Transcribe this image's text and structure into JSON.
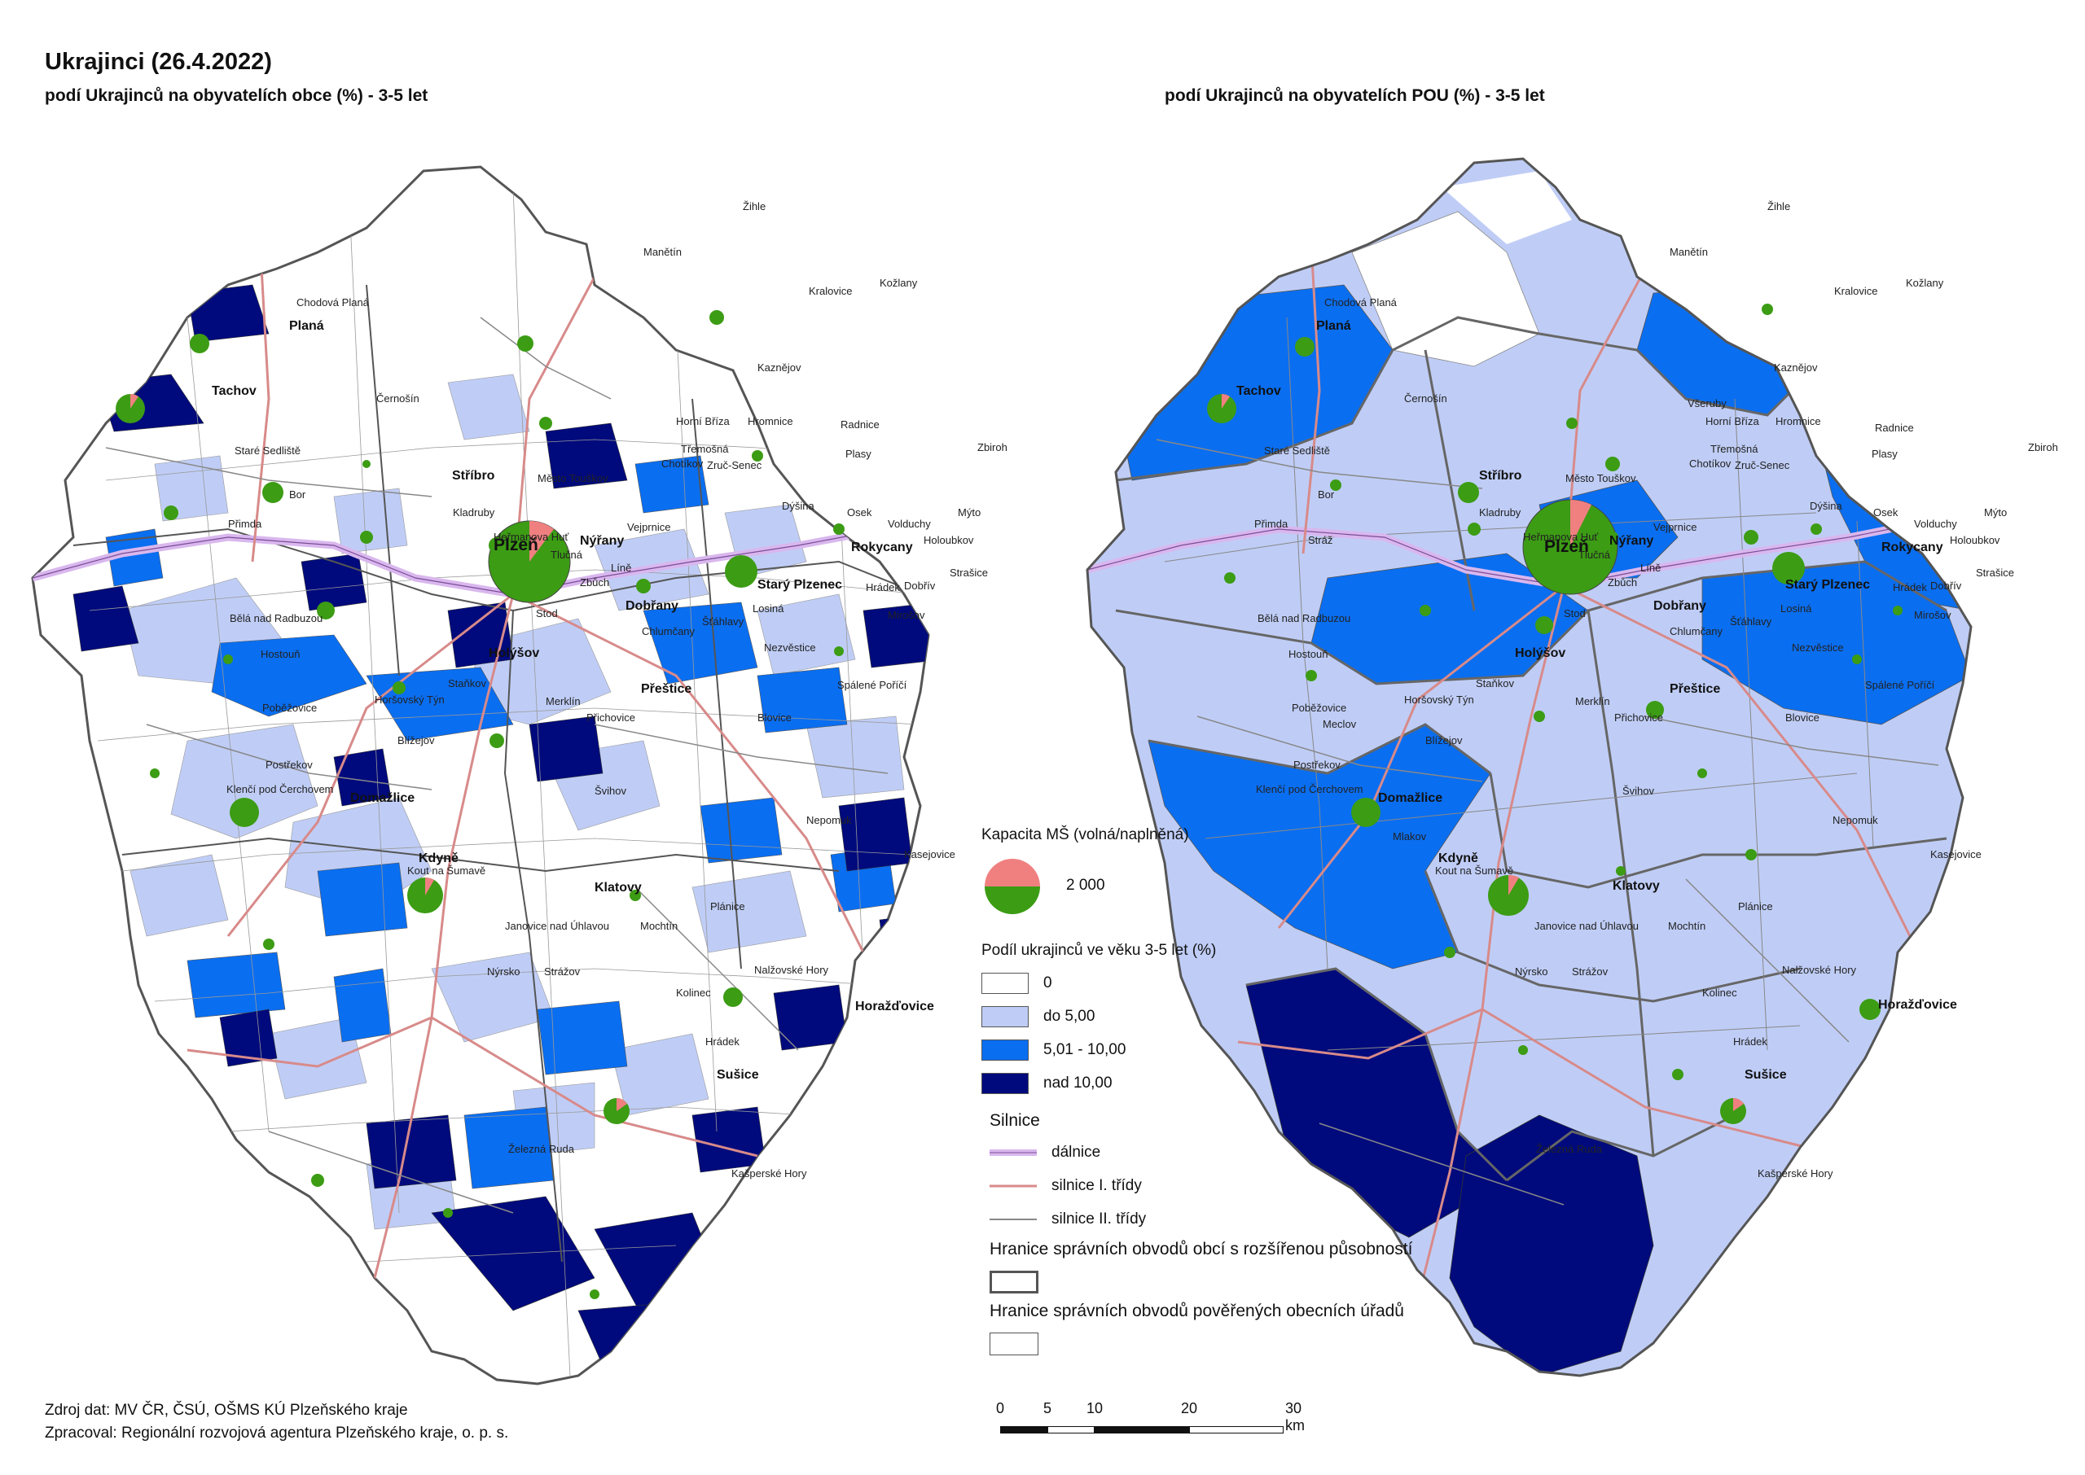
{
  "title": "Ukrajinci (26.4.2022)",
  "subtitle_left": "podí Ukrajinců na obyvatelích obce (%) -  3-5 let",
  "subtitle_right": "podí Ukrajinců na obyvatelích POU (%) -  3-5 let",
  "colors": {
    "class_0": "#ffffff",
    "class_do5": "#bfcdf6",
    "class_5_10": "#0a6ef0",
    "class_nad10": "#000a7c",
    "pie_free": "#f08080",
    "pie_filled": "#3c9c14",
    "dalnice": "#d9b7ee",
    "silnice_1": "#d88a8a",
    "silnice_2": "#888888",
    "border_orp": "#555555"
  },
  "legend": {
    "capacity_title": "Kapacita MŠ (volná/naplněná)",
    "capacity_value": "2 000",
    "share_title": "Podíl ukrajinců ve věku 3-5 let  (%)",
    "classes": [
      "0",
      "do 5,00",
      "5,01 - 10,00",
      "nad 10,00"
    ],
    "roads_title": "Silnice",
    "roads": [
      "dálnice",
      "silnice I. třídy",
      "silnice II. třídy"
    ],
    "boundary_orp": "Hranice správních obvodů obcí s rozšířenou působností",
    "boundary_pou": "Hranice správních obvodů pověřených obecních úřadů"
  },
  "towns": {
    "plzen": "Plzeň",
    "klatovy": "Klatovy",
    "domazlice": "Domažlice",
    "rokycany": "Rokycany",
    "tachov": "Tachov",
    "stribro": "Stříbro",
    "planá": "Planá",
    "holysov": "Holýšov",
    "prestice": "Přeštice",
    "dobrany": "Dobřany",
    "nyrany": "Nýřany",
    "stary_plzenec": "Starý Plzenec",
    "kdyne": "Kdyně",
    "horazdovice": "Horažďovice",
    "susice": "Sušice",
    "zihle": "Žihle",
    "manetin": "Manětín",
    "kralovice": "Kralovice",
    "kozlany": "Kožlany",
    "chodova_plana": "Chodová Planá",
    "cernosin": "Černošín",
    "mesto_touskov": "Město Touškov",
    "kralovice2": "Kaznějov",
    "trem": "Třemošná",
    "zruc": "Zruč-Senec",
    "zbiroh": "Zbiroh",
    "radnice": "Radnice",
    "bor": "Bor",
    "stare_sedliste": "Staré Sedliště",
    "primda": "Přimda",
    "kladruby": "Kladruby",
    "hermanova_hut": "Heřmanova Huť",
    "bela": "Bělá nad Radbuzou",
    "hostoun": "Hostouň",
    "horsovsky_tyn": "Horšovský Týn",
    "pobezovice": "Poběžovice",
    "blizejov": "Blížejov",
    "postrekov": "Postřekov",
    "klenci": "Klenčí pod Čerchovem",
    "kout": "Kout na Šumavě",
    "janovice": "Janovice nad Úhlavou",
    "mochtin": "Mochtín",
    "nyrsko": "Nýrsko",
    "strazov": "Strážov",
    "kolinec": "Kolinec",
    "hradek": "Hrádek",
    "nalzovske_hory": "Nalžovské Hory",
    "zelezna_ruda": "Železná Ruda",
    "kasperske_hory": "Kašperské Hory",
    "nepomuk": "Nepomuk",
    "kasejovice": "Kasejovice",
    "planice": "Plánice",
    "svihov": "Švihov",
    "merklin": "Merklín",
    "prichovice": "Přichovice",
    "blovice": "Blovice",
    "spalene_porici": "Spálené Poříčí",
    "nezvestice": "Nezvěstice",
    "mirosov": "Mirošov",
    "losina": "Losiná",
    "stenovice": "Šťáhlavy",
    "chlumcany": "Chlumčany",
    "stod": "Stod",
    "stankov": "Staňkov",
    "mesto_vejprnice": "Vejprnice",
    "tlucna": "Tlučná",
    "line": "Líně",
    "zbuch": "Zbůch",
    "chotikov": "Chotíkov",
    "hradek2": "Hrádek",
    "dobriv": "Dobřív",
    "strasice": "Strašice",
    "osek": "Osek",
    "volduchy": "Volduchy",
    "holoubkov": "Holoubkov",
    "mito": "Mýto",
    "vsetuly": "Všeruby",
    "horni_briza": "Horní Bříza",
    "hromnice": "Hromnice",
    "plasy": "Plasy",
    "dysina": "Dýšina",
    "kaznejov": "Kaznějov",
    "strazov2": "Stráž",
    "meclov": "Meclov",
    "mlakov": "Mlakov"
  },
  "scale": {
    "ticks": [
      "0",
      "5",
      "10",
      "20",
      "30 km"
    ]
  },
  "source": {
    "line1": "Zdroj dat: MV ČR, ČSÚ, OŠMS KÚ Plzeňského kraje",
    "line2": "Zpracoval: Regionální rozvojová agentura Plzeňského kraje, o. p. s."
  }
}
